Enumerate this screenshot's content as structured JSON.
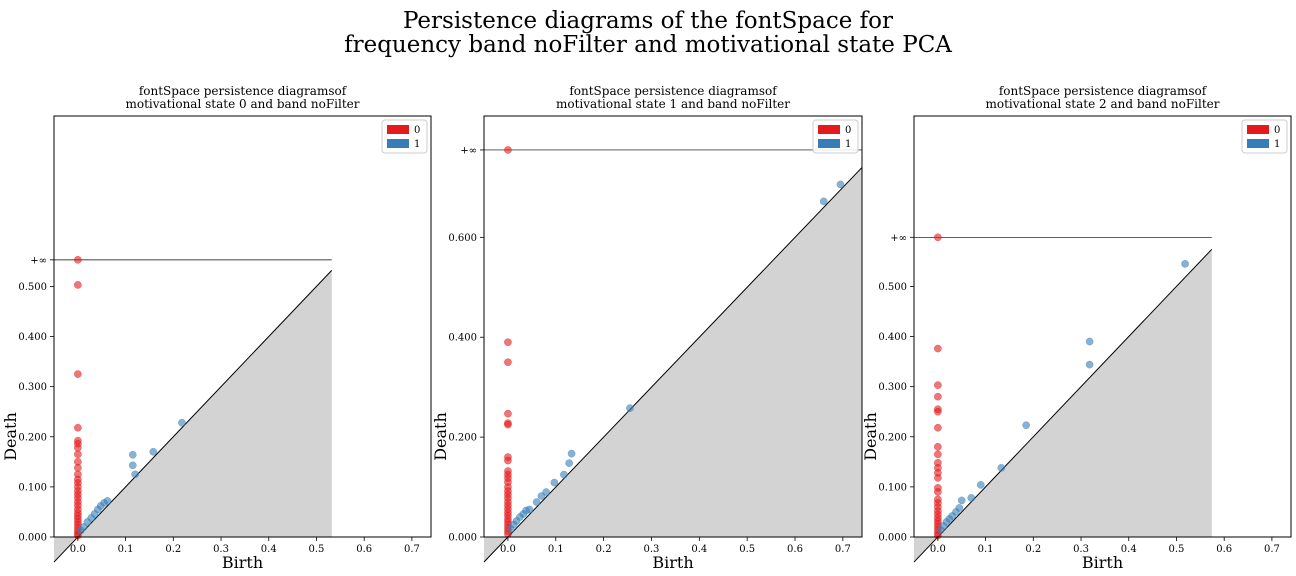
{
  "suptitle": [
    "Persistence diagrams of the fontSpace for",
    "frequency band noFilter and motivational state PCA"
  ],
  "colors": {
    "dim0": "#e41a1c",
    "dim1": "#377eb8",
    "shade": "#d3d3d3"
  },
  "chart_data": [
    {
      "type": "scatter",
      "title": [
        "fontSpace persistence diagramsof",
        "motivational state 0 and band noFilter"
      ],
      "xlabel": "Birth",
      "ylabel": "Death",
      "xlim": [
        -0.05,
        0.74
      ],
      "ylim": [
        0,
        0.84
      ],
      "xticks": [
        0.0,
        0.1,
        0.2,
        0.3,
        0.4,
        0.5,
        0.6,
        0.7
      ],
      "xtick_labels": [
        "0.0",
        "0.1",
        "0.2",
        "0.3",
        "0.4",
        "0.5",
        "0.6",
        "0.7"
      ],
      "yticks": [
        0.0,
        0.1,
        0.2,
        0.3,
        0.4,
        0.5
      ],
      "ytick_labels": [
        "0.000",
        "0.100",
        "0.200",
        "0.300",
        "0.400",
        "0.500"
      ],
      "inf_value": 0.553,
      "inf_label": "+∞",
      "diag_max": 0.532,
      "legend": [
        "0",
        "1"
      ],
      "legend_loc": "upper right",
      "series": [
        {
          "name": "0",
          "points": [
            [
              0,
              0.553
            ],
            [
              0,
              0.503
            ],
            [
              0,
              0.325
            ],
            [
              0,
              0.218
            ],
            [
              0,
              0.192
            ],
            [
              0,
              0.186
            ],
            [
              0,
              0.178
            ],
            [
              0,
              0.165
            ],
            [
              0,
              0.15
            ],
            [
              0,
              0.138
            ],
            [
              0,
              0.125
            ],
            [
              0,
              0.115
            ],
            [
              0,
              0.108
            ],
            [
              0,
              0.1
            ],
            [
              0,
              0.092
            ],
            [
              0,
              0.085
            ],
            [
              0,
              0.078
            ],
            [
              0,
              0.07
            ],
            [
              0,
              0.063
            ],
            [
              0,
              0.055
            ],
            [
              0,
              0.048
            ],
            [
              0,
              0.042
            ],
            [
              0,
              0.036
            ],
            [
              0,
              0.03
            ],
            [
              0,
              0.024
            ],
            [
              0,
              0.018
            ],
            [
              0,
              0.012
            ],
            [
              0,
              0.007
            ],
            [
              0,
              0.003
            ]
          ]
        },
        {
          "name": "1",
          "points": [
            [
              0.218,
              0.228
            ],
            [
              0.158,
              0.17
            ],
            [
              0.115,
              0.164
            ],
            [
              0.115,
              0.143
            ],
            [
              0.12,
              0.125
            ],
            [
              0.062,
              0.072
            ],
            [
              0.055,
              0.068
            ],
            [
              0.048,
              0.062
            ],
            [
              0.042,
              0.055
            ],
            [
              0.035,
              0.046
            ],
            [
              0.028,
              0.038
            ],
            [
              0.02,
              0.03
            ],
            [
              0.012,
              0.02
            ],
            [
              0.006,
              0.013
            ]
          ]
        }
      ]
    },
    {
      "type": "scatter",
      "title": [
        "fontSpace persistence diagramsof",
        "motivational state 1 and band noFilter"
      ],
      "xlabel": "Birth",
      "ylabel": "Death",
      "xlim": [
        -0.05,
        0.74
      ],
      "ylim": [
        0,
        0.843
      ],
      "xticks": [
        0.0,
        0.1,
        0.2,
        0.3,
        0.4,
        0.5,
        0.6,
        0.7
      ],
      "xtick_labels": [
        "0.0",
        "0.1",
        "0.2",
        "0.3",
        "0.4",
        "0.5",
        "0.6",
        "0.7"
      ],
      "yticks": [
        0.0,
        0.2,
        0.4,
        0.6
      ],
      "ytick_labels": [
        "0.000",
        "0.200",
        "0.400",
        "0.600"
      ],
      "inf_value": 0.775,
      "inf_label": "+∞",
      "diag_max": 0.74,
      "legend": [
        "0",
        "1"
      ],
      "legend_loc": "upper right",
      "series": [
        {
          "name": "0",
          "points": [
            [
              0,
              0.775
            ],
            [
              0,
              0.39
            ],
            [
              0,
              0.35
            ],
            [
              0,
              0.247
            ],
            [
              0,
              0.228
            ],
            [
              0,
              0.225
            ],
            [
              0,
              0.16
            ],
            [
              0,
              0.153
            ],
            [
              0,
              0.132
            ],
            [
              0,
              0.125
            ],
            [
              0,
              0.118
            ],
            [
              0,
              0.11
            ],
            [
              0,
              0.1
            ],
            [
              0,
              0.092
            ],
            [
              0,
              0.085
            ],
            [
              0,
              0.078
            ],
            [
              0,
              0.07
            ],
            [
              0,
              0.063
            ],
            [
              0,
              0.056
            ],
            [
              0,
              0.049
            ],
            [
              0,
              0.043
            ],
            [
              0,
              0.036
            ],
            [
              0,
              0.03
            ],
            [
              0,
              0.024
            ],
            [
              0,
              0.018
            ],
            [
              0,
              0.012
            ],
            [
              0,
              0.006
            ]
          ]
        },
        {
          "name": "1",
          "points": [
            [
              0.695,
              0.706
            ],
            [
              0.66,
              0.672
            ],
            [
              0.255,
              0.258
            ],
            [
              0.133,
              0.167
            ],
            [
              0.128,
              0.148
            ],
            [
              0.117,
              0.125
            ],
            [
              0.097,
              0.109
            ],
            [
              0.08,
              0.09
            ],
            [
              0.07,
              0.082
            ],
            [
              0.06,
              0.07
            ],
            [
              0.045,
              0.055
            ],
            [
              0.038,
              0.053
            ],
            [
              0.032,
              0.046
            ],
            [
              0.025,
              0.04
            ],
            [
              0.018,
              0.032
            ],
            [
              0.012,
              0.025
            ],
            [
              0.006,
              0.016
            ]
          ]
        }
      ]
    },
    {
      "type": "scatter",
      "title": [
        "fontSpace persistence diagramsof",
        "motivational state 2 and band noFilter"
      ],
      "xlabel": "Birth",
      "ylabel": "Death",
      "xlim": [
        -0.05,
        0.74
      ],
      "ylim": [
        0,
        0.84
      ],
      "xticks": [
        0.0,
        0.1,
        0.2,
        0.3,
        0.4,
        0.5,
        0.6,
        0.7
      ],
      "xtick_labels": [
        "0.0",
        "0.1",
        "0.2",
        "0.3",
        "0.4",
        "0.5",
        "0.6",
        "0.7"
      ],
      "yticks": [
        0.0,
        0.1,
        0.2,
        0.3,
        0.4,
        0.5
      ],
      "ytick_labels": [
        "0.000",
        "0.100",
        "0.200",
        "0.300",
        "0.400",
        "0.500"
      ],
      "inf_value": 0.598,
      "inf_label": "+∞",
      "diag_max": 0.574,
      "legend": [
        "0",
        "1"
      ],
      "legend_loc": "upper right",
      "series": [
        {
          "name": "0",
          "points": [
            [
              0,
              0.598
            ],
            [
              0,
              0.376
            ],
            [
              0,
              0.303
            ],
            [
              0,
              0.28
            ],
            [
              0,
              0.255
            ],
            [
              0,
              0.25
            ],
            [
              0,
              0.218
            ],
            [
              0,
              0.18
            ],
            [
              0,
              0.165
            ],
            [
              0,
              0.148
            ],
            [
              0,
              0.138
            ],
            [
              0,
              0.128
            ],
            [
              0,
              0.118
            ],
            [
              0,
              0.098
            ],
            [
              0,
              0.09
            ],
            [
              0,
              0.075
            ],
            [
              0,
              0.068
            ],
            [
              0,
              0.06
            ],
            [
              0,
              0.052
            ],
            [
              0,
              0.045
            ],
            [
              0,
              0.038
            ],
            [
              0,
              0.032
            ],
            [
              0,
              0.026
            ],
            [
              0,
              0.02
            ],
            [
              0,
              0.014
            ],
            [
              0,
              0.008
            ],
            [
              0,
              0.003
            ]
          ]
        },
        {
          "name": "1",
          "points": [
            [
              0.518,
              0.545
            ],
            [
              0.318,
              0.39
            ],
            [
              0.318,
              0.344
            ],
            [
              0.185,
              0.223
            ],
            [
              0.133,
              0.138
            ],
            [
              0.09,
              0.104
            ],
            [
              0.07,
              0.078
            ],
            [
              0.05,
              0.073
            ],
            [
              0.045,
              0.058
            ],
            [
              0.038,
              0.05
            ],
            [
              0.03,
              0.042
            ],
            [
              0.024,
              0.036
            ],
            [
              0.018,
              0.03
            ],
            [
              0.012,
              0.022
            ],
            [
              0.006,
              0.014
            ]
          ]
        }
      ]
    }
  ]
}
